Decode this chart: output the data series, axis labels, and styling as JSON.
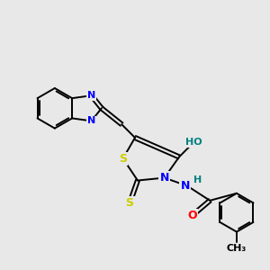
{
  "bg_color": "#e8e8e8",
  "bond_color": "#000000",
  "atom_colors": {
    "N": "#0000ff",
    "S": "#cccc00",
    "O": "#ff0000",
    "H": "#008080",
    "C": "#000000"
  }
}
